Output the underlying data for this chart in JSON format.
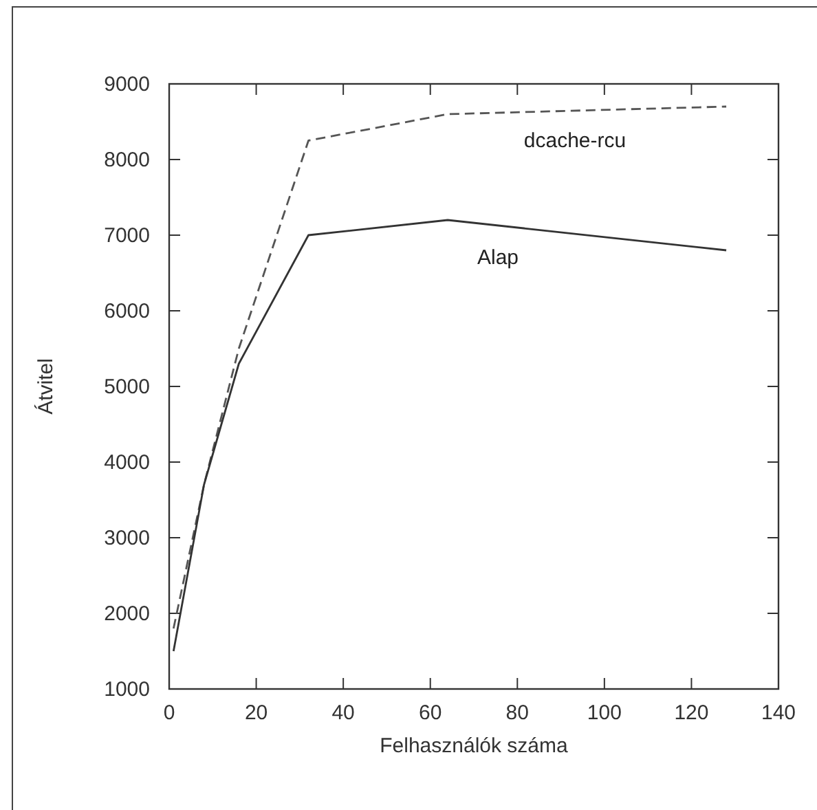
{
  "chart_data": {
    "type": "line",
    "xlabel": "Felhasználók száma",
    "ylabel": "Átvitel",
    "xlim": [
      0,
      140
    ],
    "xticks": [
      0,
      20,
      40,
      60,
      80,
      100,
      120,
      140
    ],
    "ylim": [
      1000,
      9000
    ],
    "yticks": [
      1000,
      2000,
      3000,
      4000,
      5000,
      6000,
      7000,
      8000,
      9000
    ],
    "grid": false,
    "legend": false,
    "marker": "none",
    "series": [
      {
        "name": "dcache-rcu",
        "color": "#555555",
        "line_style": "dashed",
        "x": [
          1,
          8,
          16,
          32,
          64,
          128
        ],
        "values": [
          1800,
          3700,
          5500,
          8250,
          8600,
          8700
        ]
      },
      {
        "name": "Alap",
        "color": "#333333",
        "line_style": "solid",
        "x": [
          1,
          8,
          16,
          32,
          64,
          128
        ],
        "values": [
          1500,
          3700,
          5300,
          7000,
          7200,
          6800
        ]
      }
    ]
  }
}
